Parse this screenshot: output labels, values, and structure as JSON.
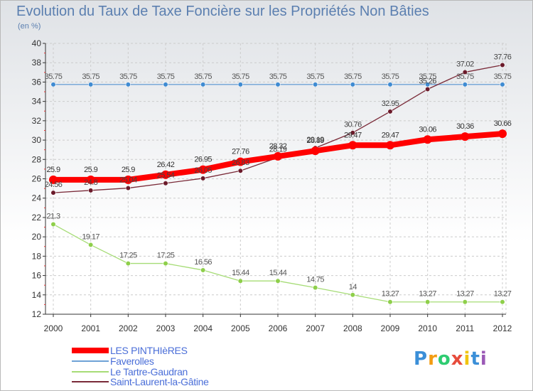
{
  "chart_data": {
    "type": "line",
    "title": "Evolution du Taux de Taxe Foncière sur les Propriétés Non Bâties",
    "ylabel": "(en %)",
    "xlabel": "",
    "x": [
      "2000",
      "2001",
      "2002",
      "2003",
      "2004",
      "2005",
      "2006",
      "2007",
      "2008",
      "2009",
      "2010",
      "2011",
      "2012"
    ],
    "ylim": [
      12,
      40
    ],
    "yticks": [
      12,
      14,
      16,
      18,
      20,
      22,
      24,
      26,
      28,
      30,
      32,
      34,
      36,
      38,
      40
    ],
    "grid": true,
    "legend_position": "bottom-left",
    "series": [
      {
        "name": "LES PINTHIèRES",
        "color": "#ff0000",
        "marker_color": "#ff0000",
        "label_color": "#333333",
        "emphasis": true,
        "values": [
          25.9,
          25.9,
          25.9,
          26.42,
          26.95,
          27.76,
          28.32,
          28.89,
          29.47,
          29.47,
          30.06,
          30.36,
          30.66
        ],
        "labels": [
          "25.9",
          "25.9",
          "25.9",
          "26.42",
          "26.95",
          "27.76",
          "28.32",
          "28.89",
          "29.47",
          "29.47",
          "30.06",
          "30.36",
          "30.66"
        ]
      },
      {
        "name": "Faverolles",
        "color": "#6ea2d6",
        "marker_color": "#3f8bd2",
        "label_color": "#555555",
        "emphasis": false,
        "values": [
          35.75,
          35.75,
          35.75,
          35.75,
          35.75,
          35.75,
          35.75,
          35.75,
          35.75,
          35.75,
          35.75,
          35.75,
          35.75
        ],
        "labels": [
          "35.75",
          "35.75",
          "35.75",
          "35.75",
          "35.75",
          "35.75",
          "35.75",
          "35.75",
          "35.75",
          "35.75",
          "35.75",
          "35.75",
          "35.75"
        ]
      },
      {
        "name": "Le Tartre-Gaudran",
        "color": "#a6dc76",
        "marker_color": "#8ecf4a",
        "label_color": "#555555",
        "emphasis": false,
        "values": [
          21.3,
          19.17,
          17.25,
          17.25,
          16.56,
          15.44,
          15.44,
          14.75,
          14,
          13.27,
          13.27,
          13.27,
          13.27
        ],
        "labels": [
          "21.3",
          "19.17",
          "17.25",
          "17.25",
          "16.56",
          "15.44",
          "15.44",
          "14.75",
          "14",
          "13.27",
          "13.27",
          "13.27",
          "13.27"
        ]
      },
      {
        "name": "Saint-Laurent-la-Gâtine",
        "color": "#7a2a38",
        "marker_color": "#6b1a2a",
        "label_color": "#444444",
        "emphasis": false,
        "values": [
          24.56,
          24.8,
          25.04,
          25.54,
          26.05,
          26.83,
          28.19,
          29.19,
          30.76,
          32.95,
          35.26,
          37.02,
          37.76
        ],
        "labels": [
          "24.56",
          "24.8",
          "25.04",
          "25.54",
          "26.05",
          "26.83",
          "28.19",
          "29.19",
          "30.76",
          "32.95",
          "35.26",
          "37.02",
          "37.76"
        ]
      }
    ]
  },
  "logo": {
    "text": "Proxiti",
    "letters": [
      "P",
      "r",
      "o",
      "x",
      "i",
      "t",
      "i"
    ],
    "colors": [
      "#3b8fd8",
      "#f39c12",
      "#2ecc71",
      "#e74c3c",
      "#f1c40f",
      "#3b8fd8",
      "#9b59b6"
    ]
  }
}
